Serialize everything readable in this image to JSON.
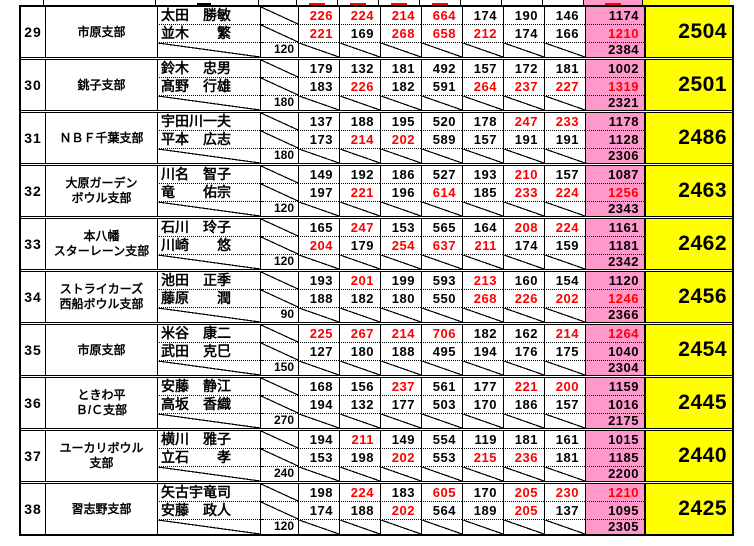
{
  "colors": {
    "pink": "#ff99cc",
    "yellow": "#ffff00",
    "red": "#ff0000",
    "grid": "#000000"
  },
  "rows": [
    {
      "rank": "29",
      "branch": "市原支部",
      "handicap": "120",
      "combined": "2384",
      "total": "2504",
      "players": [
        {
          "name": "太田　勝敏",
          "scores": [
            226,
            224,
            214,
            664,
            174,
            190,
            146
          ],
          "subtotal": 1174
        },
        {
          "name": "並木　　繁",
          "scores": [
            221,
            169,
            268,
            658,
            212,
            174,
            166
          ],
          "subtotal": 1210
        }
      ]
    },
    {
      "rank": "30",
      "branch": "銚子支部",
      "handicap": "180",
      "combined": "2321",
      "total": "2501",
      "players": [
        {
          "name": "鈴木　忠男",
          "scores": [
            179,
            132,
            181,
            492,
            157,
            172,
            181
          ],
          "subtotal": 1002
        },
        {
          "name": "髙野　行雄",
          "scores": [
            183,
            226,
            182,
            591,
            264,
            237,
            227
          ],
          "subtotal": 1319
        }
      ]
    },
    {
      "rank": "31",
      "branch": "ＮＢＦ千葉支部",
      "handicap": "180",
      "combined": "2306",
      "total": "2486",
      "players": [
        {
          "name": "宇田川一夫",
          "scores": [
            137,
            188,
            195,
            520,
            178,
            247,
            233
          ],
          "subtotal": 1178
        },
        {
          "name": "平本　広志",
          "scores": [
            173,
            214,
            202,
            589,
            157,
            191,
            191
          ],
          "subtotal": 1128
        }
      ]
    },
    {
      "rank": "32",
      "branch": "大原ガーデン\nボウル支部",
      "handicap": "120",
      "combined": "2343",
      "total": "2463",
      "players": [
        {
          "name": "川名　智子",
          "scores": [
            149,
            192,
            186,
            527,
            193,
            210,
            157
          ],
          "subtotal": 1087
        },
        {
          "name": "竜　　佑宗",
          "scores": [
            197,
            221,
            196,
            614,
            185,
            233,
            224
          ],
          "subtotal": 1256
        }
      ]
    },
    {
      "rank": "33",
      "branch": "本八幡\nスターレーン支部",
      "handicap": "120",
      "combined": "2342",
      "total": "2462",
      "players": [
        {
          "name": "石川　玲子",
          "scores": [
            165,
            247,
            153,
            565,
            164,
            208,
            224
          ],
          "subtotal": 1161
        },
        {
          "name": "川崎　　悠",
          "scores": [
            204,
            179,
            254,
            637,
            211,
            174,
            159
          ],
          "subtotal": 1181
        }
      ]
    },
    {
      "rank": "34",
      "branch": "ストライカーズ\n西船ボウル支部",
      "handicap": "90",
      "combined": "2366",
      "total": "2456",
      "players": [
        {
          "name": "池田　正季",
          "scores": [
            193,
            201,
            199,
            593,
            213,
            160,
            154
          ],
          "subtotal": 1120
        },
        {
          "name": "藤原　　潤",
          "scores": [
            188,
            182,
            180,
            550,
            268,
            226,
            202
          ],
          "subtotal": 1246
        }
      ]
    },
    {
      "rank": "35",
      "branch": "市原支部",
      "handicap": "150",
      "combined": "2304",
      "total": "2454",
      "players": [
        {
          "name": "米谷　康二",
          "scores": [
            225,
            267,
            214,
            706,
            182,
            162,
            214
          ],
          "subtotal": 1264
        },
        {
          "name": "武田　克巳",
          "scores": [
            127,
            180,
            188,
            495,
            194,
            176,
            175
          ],
          "subtotal": 1040
        }
      ]
    },
    {
      "rank": "36",
      "branch": "ときわ平\nＢ/Ｃ支部",
      "handicap": "270",
      "combined": "2175",
      "total": "2445",
      "players": [
        {
          "name": "安藤　静江",
          "scores": [
            168,
            156,
            237,
            561,
            177,
            221,
            200
          ],
          "subtotal": 1159
        },
        {
          "name": "高坂　香織",
          "scores": [
            194,
            132,
            177,
            503,
            170,
            186,
            157
          ],
          "subtotal": 1016
        }
      ]
    },
    {
      "rank": "37",
      "branch": "ユーカリボウル\n支部",
      "handicap": "240",
      "combined": "2200",
      "total": "2440",
      "players": [
        {
          "name": "横川　雅子",
          "scores": [
            194,
            211,
            149,
            554,
            119,
            181,
            161
          ],
          "subtotal": 1015
        },
        {
          "name": "立石　　孝",
          "scores": [
            153,
            198,
            202,
            553,
            215,
            236,
            181
          ],
          "subtotal": 1185
        }
      ]
    },
    {
      "rank": "38",
      "branch": "習志野支部",
      "handicap": "120",
      "combined": "2305",
      "total": "2425",
      "players": [
        {
          "name": "矢古宇竜司",
          "scores": [
            198,
            224,
            183,
            605,
            170,
            205,
            230
          ],
          "subtotal": 1210
        },
        {
          "name": "安藤　政人",
          "scores": [
            174,
            188,
            202,
            564,
            189,
            205,
            137
          ],
          "subtotal": 1095
        }
      ]
    }
  ]
}
